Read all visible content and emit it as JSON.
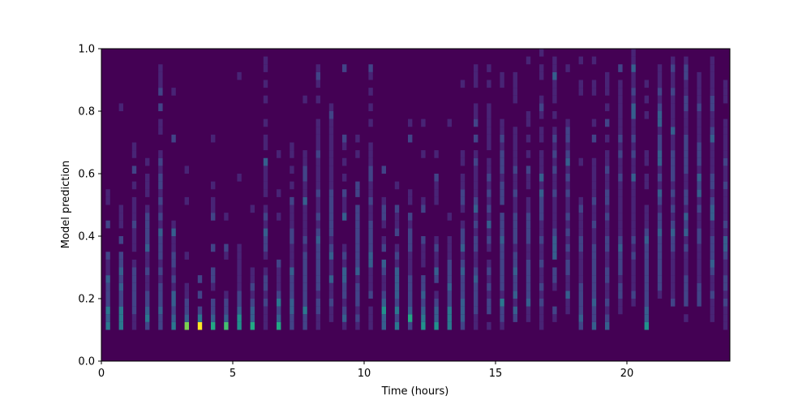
{
  "chart_data": {
    "type": "heatmap",
    "title": "",
    "xlabel": "Time (hours)",
    "ylabel": "Model prediction",
    "xlim": [
      0,
      23.92
    ],
    "ylim": [
      0,
      1.0
    ],
    "xticks": [
      0,
      5,
      10,
      15,
      20
    ],
    "xtick_labels": [
      "0",
      "5",
      "10",
      "15",
      "20"
    ],
    "yticks": [
      0.0,
      0.2,
      0.4,
      0.6,
      0.8,
      1.0
    ],
    "ytick_labels": [
      "0.0",
      "0.2",
      "0.4",
      "0.6",
      "0.8",
      "1.0"
    ],
    "grid": false,
    "colormap": "viridis",
    "colormap_colors": [
      "#440154",
      "#482475",
      "#414487",
      "#355f8d",
      "#2a788e",
      "#21918c",
      "#22a884",
      "#44bf70",
      "#7ad151",
      "#bddf26",
      "#fde725"
    ],
    "color_max": 10,
    "x_bin_start_hours": 0.1667,
    "x_bin_step_hours": 0.5,
    "x_bin_width_hours": 0.1667,
    "y_bin_start": 0.1,
    "y_bin_width": 0.025,
    "counts_by_time_bin_low_to_high_prediction": [
      [
        4,
        3,
        4,
        2,
        2,
        2,
        3,
        1,
        1,
        2,
        0,
        0,
        0,
        2,
        0,
        0,
        1,
        1
      ],
      [
        4,
        4,
        4,
        2,
        2,
        3,
        2,
        3,
        2,
        2,
        0,
        2,
        0,
        1,
        1,
        1,
        0,
        0,
        0,
        0,
        0,
        0,
        0,
        0,
        0,
        0,
        0,
        0,
        1
      ],
      [
        1,
        1,
        2,
        2,
        2,
        2,
        2,
        2,
        1,
        0,
        1,
        1,
        1,
        2,
        1,
        1,
        1,
        0,
        1,
        0,
        2,
        0,
        1,
        1
      ],
      [
        2,
        4,
        3,
        2,
        2,
        1,
        1,
        2,
        1,
        1,
        3,
        2,
        2,
        2,
        2,
        1,
        0,
        1,
        1,
        1,
        0,
        1
      ],
      [
        2,
        2,
        3,
        2,
        2,
        2,
        1,
        2,
        1,
        2,
        2,
        2,
        3,
        1,
        2,
        1,
        2,
        1,
        2,
        2,
        1,
        2,
        1,
        0,
        0,
        1,
        1,
        0,
        2,
        0,
        2,
        1,
        1,
        1
      ],
      [
        4,
        3,
        2,
        3,
        3,
        1,
        2,
        1,
        2,
        2,
        1,
        1,
        3,
        1,
        0,
        0,
        0,
        0,
        0,
        0,
        0,
        0,
        0,
        0,
        2,
        0,
        0,
        0,
        0,
        0,
        1
      ],
      [
        8,
        3,
        2,
        2,
        1,
        1,
        0,
        0,
        0,
        1,
        0,
        0,
        0,
        0,
        0,
        0,
        1,
        0,
        0,
        0,
        1
      ],
      [
        10,
        4,
        2,
        0,
        2,
        0,
        2
      ],
      [
        6,
        3,
        2,
        2,
        0,
        1,
        2,
        2,
        0,
        0,
        2,
        0,
        0,
        0,
        2,
        1,
        1,
        0,
        1,
        0,
        0,
        0,
        0,
        0,
        1
      ],
      [
        7,
        3,
        2,
        2,
        1,
        0,
        0,
        0,
        0,
        1,
        2,
        0,
        0,
        0,
        1
      ],
      [
        5,
        5,
        3,
        2,
        2,
        1,
        1,
        1,
        1,
        1,
        1,
        0,
        0,
        0,
        0,
        0,
        0,
        0,
        0,
        1,
        0,
        0,
        0,
        0,
        0,
        0,
        0,
        0,
        0,
        0,
        0,
        0,
        1
      ],
      [
        6,
        3,
        3,
        2,
        1,
        2,
        1,
        1,
        0,
        0,
        0,
        0,
        0,
        0,
        0,
        1
      ],
      [
        1,
        1,
        1,
        2,
        1,
        2,
        2,
        1,
        0,
        1,
        2,
        2,
        3,
        1,
        2,
        1,
        0,
        1,
        1,
        1,
        1,
        3,
        0,
        1,
        1,
        0,
        1,
        0,
        0,
        1,
        0,
        1,
        0,
        1,
        1
      ],
      [
        6,
        3,
        2,
        4,
        2,
        1,
        1,
        1,
        2,
        0,
        0,
        0,
        0,
        0,
        1,
        0,
        0,
        1,
        0,
        0,
        0,
        0,
        1
      ],
      [
        2,
        2,
        3,
        3,
        2,
        2,
        2,
        3,
        1,
        1,
        1,
        2,
        2,
        1,
        1,
        1,
        2,
        0,
        1,
        0,
        1,
        0,
        1,
        1
      ],
      [
        2,
        2,
        4,
        2,
        2,
        2,
        2,
        2,
        2,
        2,
        1,
        2,
        1,
        1,
        1,
        1,
        3,
        1,
        1,
        2,
        2,
        1,
        1,
        0,
        0,
        0,
        0,
        0,
        0,
        1
      ],
      [
        1,
        1,
        2,
        2,
        1,
        2,
        2,
        2,
        2,
        2,
        2,
        3,
        2,
        1,
        2,
        1,
        1,
        2,
        1,
        1,
        1,
        1,
        2,
        1,
        1,
        1,
        1,
        0,
        0,
        1,
        0,
        1,
        2,
        1
      ],
      [
        0,
        1,
        1,
        2,
        1,
        1,
        3,
        1,
        1,
        3,
        2,
        1,
        2,
        2,
        2,
        2,
        2,
        2,
        1,
        1,
        1,
        1,
        1,
        1,
        1,
        1,
        1,
        2,
        1
      ],
      [
        1,
        3,
        2,
        1,
        2,
        2,
        3,
        3,
        1,
        2,
        1,
        0,
        0,
        0,
        3,
        1,
        1,
        2,
        0,
        1,
        0,
        1,
        0,
        1,
        2,
        0,
        0,
        0,
        0,
        0,
        0,
        0,
        0,
        2
      ],
      [
        1,
        2,
        1,
        2,
        2,
        2,
        1,
        3,
        2,
        2,
        2,
        2,
        2,
        2,
        2,
        2,
        0,
        2,
        2,
        0,
        0,
        0,
        1,
        0,
        1
      ],
      [
        1,
        1,
        1,
        0,
        2,
        1,
        1,
        1,
        3,
        3,
        2,
        2,
        2,
        2,
        1,
        1,
        2,
        1,
        1,
        2,
        2,
        1,
        1,
        1,
        0,
        0,
        1,
        0,
        1,
        0,
        1,
        0,
        1,
        2
      ],
      [
        3,
        3,
        5,
        3,
        2,
        1,
        1,
        2,
        3,
        0,
        2,
        1,
        0,
        1,
        2,
        2,
        1,
        0,
        0,
        0,
        2
      ],
      [
        4,
        2,
        4,
        2,
        3,
        3,
        3,
        3,
        1,
        2,
        1,
        0,
        2,
        1,
        1,
        2,
        0,
        0,
        1
      ],
      [
        2,
        6,
        3,
        2,
        2,
        2,
        2,
        1,
        1,
        1,
        2,
        2,
        2,
        1,
        2,
        0,
        1,
        1,
        0,
        0,
        0,
        0,
        0,
        0,
        2,
        0,
        1
      ],
      [
        5,
        4,
        3,
        2,
        3,
        2,
        2,
        0,
        1,
        1,
        1,
        2,
        0,
        0,
        0,
        2,
        1,
        0,
        0,
        0,
        0,
        0,
        1,
        0,
        0,
        0,
        1
      ],
      [
        5,
        3,
        3,
        2,
        1,
        0,
        2,
        3,
        1,
        1,
        2,
        1,
        0,
        0,
        0,
        0,
        1,
        1,
        1,
        2,
        0,
        0,
        1
      ],
      [
        4,
        4,
        4,
        2,
        2,
        3,
        2,
        2,
        2,
        1,
        1,
        1,
        0,
        0,
        1,
        0,
        0,
        0,
        0,
        0,
        0,
        0,
        0,
        0,
        0,
        0,
        1
      ],
      [
        2,
        3,
        3,
        3,
        2,
        2,
        2,
        3,
        2,
        1,
        3,
        2,
        2,
        1,
        0,
        1,
        2,
        2,
        1,
        1,
        0,
        1,
        1,
        0,
        0,
        0,
        0,
        0,
        0,
        0,
        0,
        1
      ],
      [
        1,
        1,
        2,
        2,
        2,
        2,
        3,
        2,
        1,
        1,
        2,
        2,
        1,
        2,
        1,
        3,
        2,
        1,
        1,
        1,
        1,
        2,
        1,
        0,
        2,
        0,
        2,
        1,
        1,
        0,
        0,
        1,
        1,
        1
      ],
      [
        1,
        0,
        2,
        2,
        1,
        2,
        1,
        2,
        1,
        0,
        1,
        2,
        1,
        3,
        1,
        2,
        1,
        2,
        1,
        2,
        1,
        1,
        0,
        1,
        1,
        1,
        1,
        1,
        1,
        0,
        0,
        1,
        0,
        1
      ],
      [
        1,
        2,
        2,
        4,
        1,
        2,
        2,
        2,
        2,
        2,
        2,
        3,
        2,
        2,
        2,
        0,
        2,
        2,
        2,
        1,
        2,
        2,
        2,
        1,
        2,
        1,
        1,
        0,
        0,
        0,
        0,
        1,
        1
      ],
      [
        0,
        2,
        3,
        1,
        3,
        2,
        2,
        3,
        2,
        2,
        1,
        2,
        2,
        2,
        2,
        1,
        1,
        2,
        1,
        1,
        2,
        1,
        1,
        1,
        1,
        1,
        0,
        0,
        0,
        1,
        1,
        1,
        1
      ],
      [
        0,
        1,
        1,
        3,
        2,
        2,
        2,
        2,
        2,
        1,
        1,
        2,
        2,
        2,
        2,
        1,
        1,
        0,
        1,
        1,
        2,
        0,
        1,
        0,
        1,
        0,
        1,
        1,
        0,
        0,
        0,
        0,
        0,
        0,
        1
      ],
      [
        1,
        1,
        1,
        2,
        1,
        2,
        1,
        1,
        2,
        1,
        1,
        2,
        1,
        1,
        2,
        2,
        2,
        3,
        1,
        3,
        1,
        1,
        1,
        0,
        1,
        1,
        0,
        1,
        2,
        1,
        0,
        0,
        1,
        1,
        0,
        1
      ],
      [
        0,
        1,
        2,
        0,
        0,
        1,
        2,
        2,
        0,
        3,
        3,
        3,
        2,
        1,
        1,
        1,
        1,
        2,
        1,
        1,
        2,
        1,
        2,
        1,
        2,
        1,
        0,
        1,
        0,
        1,
        1,
        1,
        3,
        1,
        1
      ],
      [
        0,
        0,
        1,
        1,
        3,
        1,
        1,
        2,
        2,
        1,
        2,
        1,
        2,
        1,
        2,
        1,
        1,
        2,
        1,
        2,
        1,
        3,
        2,
        1,
        2,
        2,
        1,
        0,
        0,
        0,
        0,
        0,
        0,
        1
      ],
      [
        2,
        3,
        2,
        2,
        2,
        2,
        1,
        1,
        1,
        1,
        2,
        2,
        1,
        1,
        1,
        2,
        1,
        0,
        0,
        0,
        0,
        1,
        0,
        0,
        0,
        0,
        0,
        0,
        0,
        0,
        1,
        1,
        0,
        0,
        1
      ],
      [
        3,
        2,
        2,
        3,
        2,
        2,
        2,
        2,
        2,
        2,
        2,
        1,
        1,
        2,
        1,
        1,
        2,
        1,
        1,
        1,
        1,
        1,
        0,
        0,
        2,
        0,
        1,
        0,
        0,
        0,
        1,
        1,
        0,
        0,
        1
      ],
      [
        3,
        2,
        1,
        2,
        1,
        1,
        2,
        2,
        1,
        1,
        2,
        2,
        1,
        1,
        2,
        1,
        2,
        2,
        1,
        1,
        2,
        1,
        1,
        0,
        1,
        0,
        2,
        0,
        1,
        0,
        1,
        1,
        1
      ],
      [
        0,
        0,
        1,
        1,
        2,
        2,
        1,
        2,
        2,
        2,
        3,
        2,
        1,
        1,
        1,
        1,
        1,
        1,
        1,
        2,
        1,
        1,
        2,
        1,
        2,
        1,
        1,
        1,
        1,
        1,
        1,
        1,
        0,
        2
      ],
      [
        0,
        0,
        0,
        1,
        2,
        1,
        1,
        1,
        1,
        2,
        1,
        2,
        1,
        1,
        1,
        1,
        1,
        1,
        1,
        3,
        1,
        1,
        2,
        1,
        2,
        1,
        1,
        3,
        3,
        1,
        2,
        1,
        1,
        3,
        1,
        1
      ],
      [
        5,
        3,
        3,
        2,
        2,
        2,
        2,
        2,
        2,
        2,
        2,
        3,
        2,
        1,
        1,
        1,
        0,
        0,
        1,
        1,
        0,
        1,
        1,
        0,
        0,
        0,
        0,
        1,
        0,
        1,
        0,
        1
      ],
      [
        0,
        0,
        0,
        0,
        1,
        2,
        2,
        2,
        2,
        2,
        2,
        2,
        3,
        2,
        2,
        1,
        2,
        3,
        1,
        2,
        1,
        3,
        3,
        2,
        2,
        1,
        3,
        3,
        2,
        1,
        2,
        1,
        1,
        1
      ],
      [
        0,
        0,
        0,
        2,
        1,
        1,
        1,
        1,
        1,
        1,
        2,
        2,
        3,
        2,
        1,
        2,
        1,
        2,
        1,
        2,
        2,
        2,
        2,
        1,
        1,
        3,
        1,
        1,
        1,
        1,
        2,
        1,
        1,
        2,
        1
      ],
      [
        0,
        1,
        0,
        2,
        2,
        2,
        2,
        1,
        1,
        1,
        2,
        1,
        3,
        2,
        3,
        1,
        2,
        2,
        1,
        1,
        2,
        2,
        2,
        2,
        2,
        1,
        1,
        1,
        2,
        2,
        1,
        1,
        2,
        2,
        1
      ],
      [
        0,
        0,
        0,
        2,
        2,
        2,
        1,
        1,
        1,
        1,
        1,
        2,
        2,
        1,
        1,
        2,
        1,
        3,
        2,
        3,
        1,
        2,
        2,
        2,
        1,
        1,
        1,
        1,
        2,
        1,
        1,
        1,
        1
      ],
      [
        0,
        1,
        1,
        1,
        2,
        1,
        1,
        2,
        3,
        2,
        2,
        2,
        1,
        1,
        3,
        3,
        2,
        1,
        2,
        2,
        1,
        1,
        1,
        1,
        3,
        2,
        1,
        1,
        2,
        2,
        1,
        1,
        1,
        1,
        1
      ],
      [
        1,
        1,
        1,
        2,
        1,
        2,
        2,
        1,
        1,
        2,
        3,
        3,
        1,
        2,
        1,
        1,
        1,
        1,
        2,
        1,
        1,
        2,
        1,
        1,
        1,
        1,
        1,
        0,
        0,
        1,
        1,
        1
      ]
    ]
  }
}
